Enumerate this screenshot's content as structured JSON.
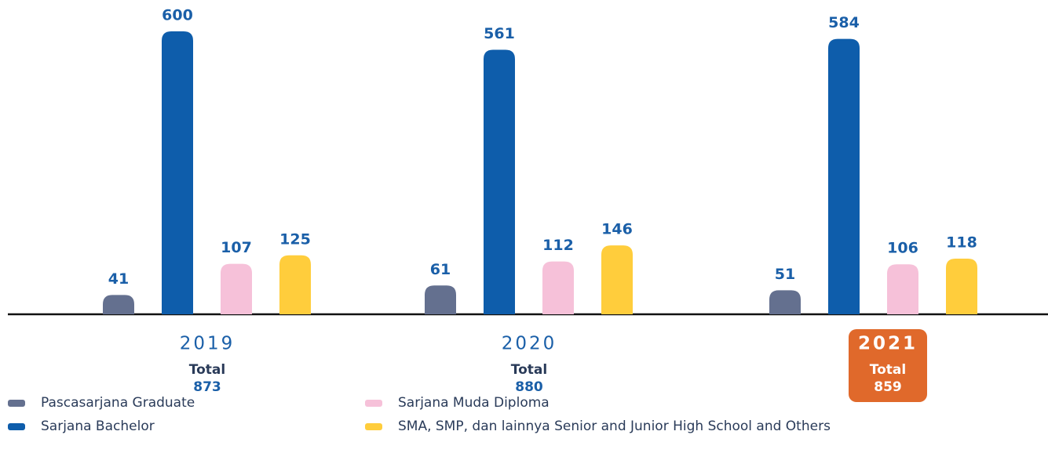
{
  "chart_data": {
    "type": "bar",
    "categories": [
      "2019",
      "2020",
      "2021"
    ],
    "series": [
      {
        "name": "Pascasarjana Graduate",
        "color": "#64708f",
        "values": [
          41,
          61,
          51
        ]
      },
      {
        "name": "Sarjana Bachelor",
        "color": "#0e5dab",
        "values": [
          600,
          561,
          584
        ]
      },
      {
        "name": "Sarjana Muda Diploma",
        "color": "#f6c1d9",
        "values": [
          107,
          112,
          106
        ]
      },
      {
        "name": "SMA, SMP, dan lainnya Senior and Junior High School and Others",
        "color": "#ffcd3c",
        "values": [
          125,
          146,
          118
        ]
      }
    ],
    "total_label": "Total",
    "totals": [
      873,
      880,
      859
    ],
    "highlight": "2021",
    "highlight_color": "#e0692b",
    "ylim": [
      0,
      600
    ]
  }
}
